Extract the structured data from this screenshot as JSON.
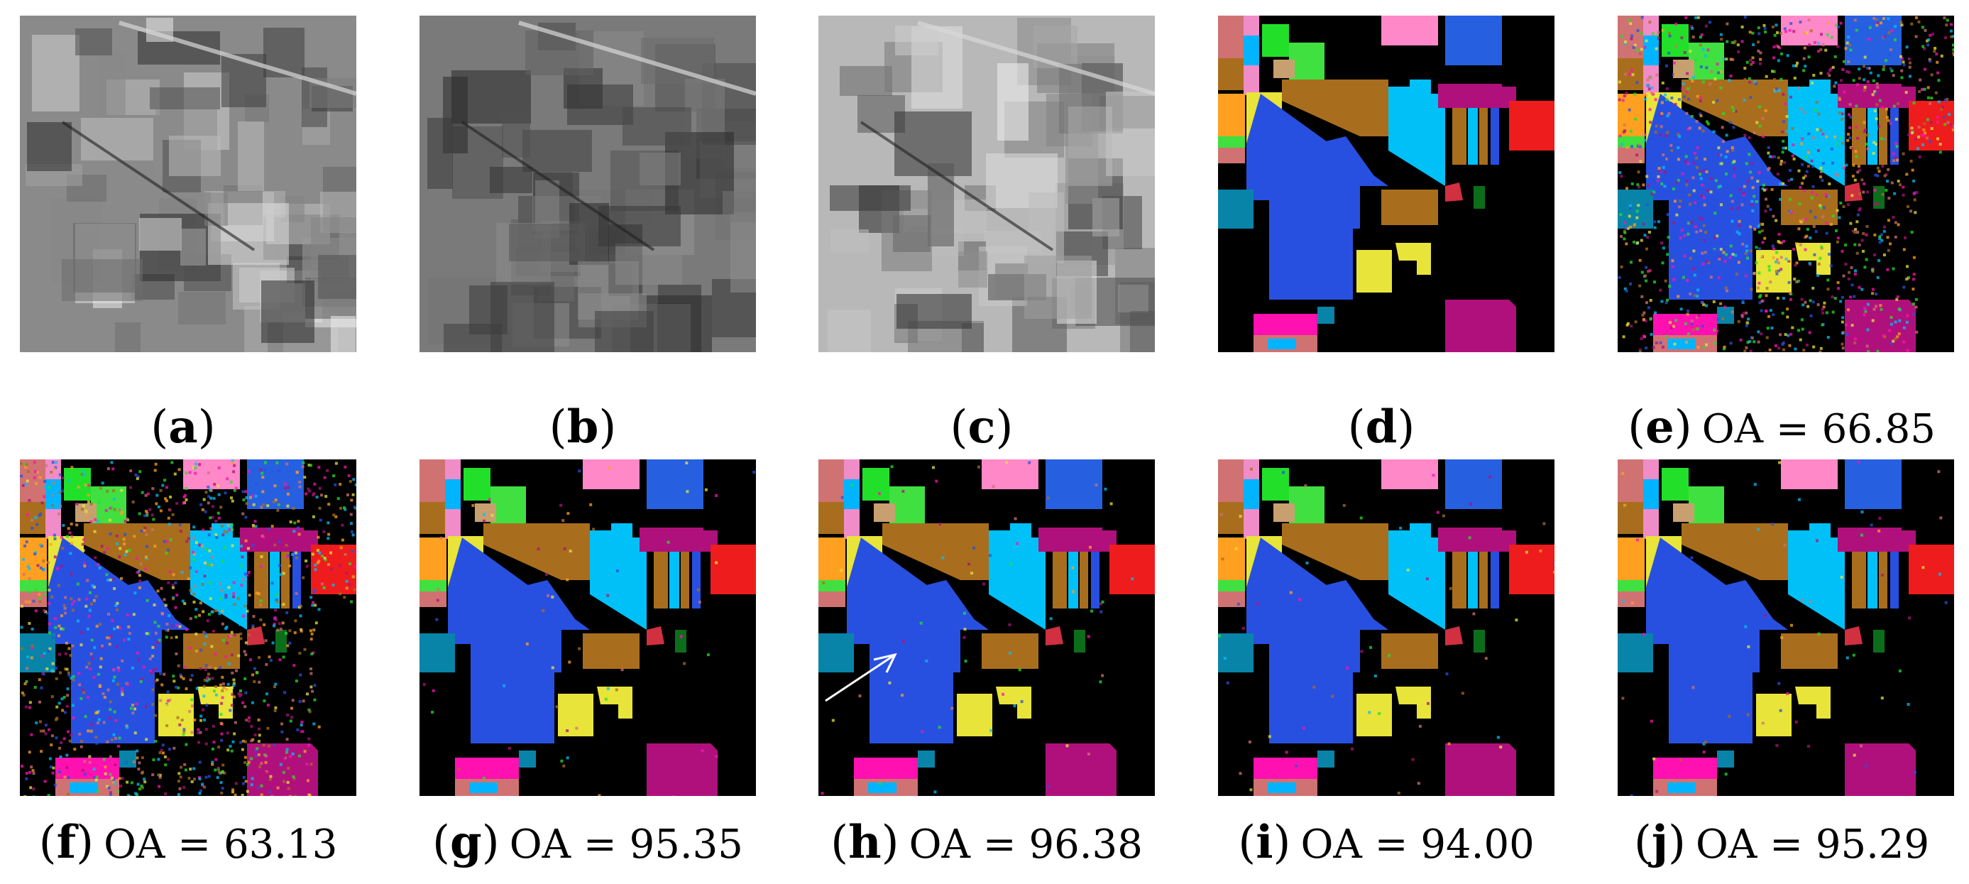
{
  "panels": [
    {
      "id": "a",
      "letter": "a",
      "oa": "",
      "kind": "band-1"
    },
    {
      "id": "b",
      "letter": "b",
      "oa": "",
      "kind": "band-2"
    },
    {
      "id": "c",
      "letter": "c",
      "oa": "",
      "kind": "band-3"
    },
    {
      "id": "d",
      "letter": "d",
      "oa": "",
      "kind": "ground-truth-map"
    },
    {
      "id": "e",
      "letter": "e",
      "oa": "OA = 66.85",
      "kind": "classification-map-noisy"
    },
    {
      "id": "f",
      "letter": "f",
      "oa": "OA = 63.13",
      "kind": "classification-map-noisy"
    },
    {
      "id": "g",
      "letter": "g",
      "oa": "OA = 95.35",
      "kind": "classification-map"
    },
    {
      "id": "h",
      "letter": "h",
      "oa": "OA = 96.38",
      "kind": "classification-map-with-arrow"
    },
    {
      "id": "i",
      "letter": "i",
      "oa": "OA = 94.00",
      "kind": "classification-map"
    },
    {
      "id": "j",
      "letter": "j",
      "oa": "OA = 95.29",
      "kind": "classification-map"
    }
  ],
  "colors": {
    "background": "#000000",
    "salmon": "#d07272",
    "cyan_small": "#00b4ff",
    "pink_small": "#f08cc8",
    "green": "#22e02a",
    "tan": "#c8a070",
    "orange": "#ffa020",
    "light_green": "#40e040",
    "brown": "#a86e1e",
    "yellow": "#e8e43a",
    "blue": "#2850e0",
    "sky": "#00c0f8",
    "magenta_bar": "#ff10b0",
    "purple": "#b0107c",
    "red": "#ee1c1c",
    "teal": "#0884a8",
    "dark_green": "#0c6e1a",
    "rose": "#d03040",
    "light_pink": "#ff88c8",
    "dark_blue": "#2660e0"
  }
}
